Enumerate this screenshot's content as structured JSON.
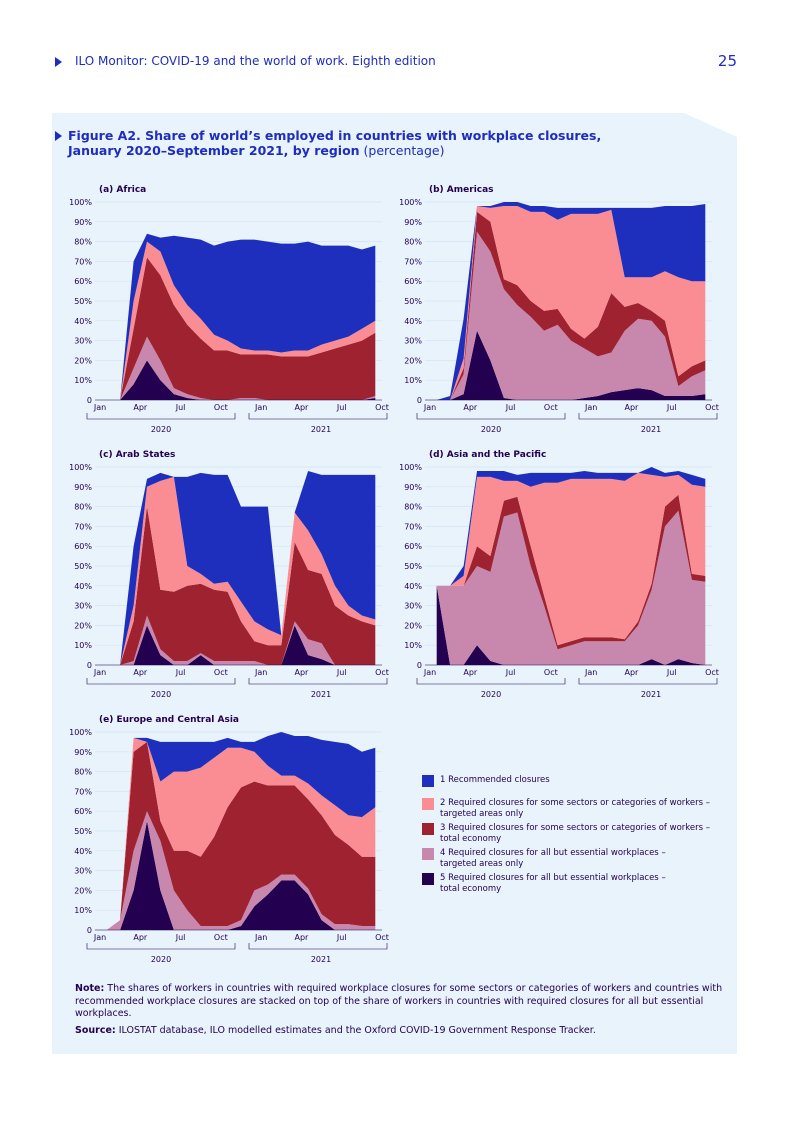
{
  "header": {
    "title": "ILO Monitor: COVID-19 and the world of work. Eighth edition",
    "page_number": "25"
  },
  "figure": {
    "title_line1": "Figure A2.  Share of world’s employed in countries with workplace closures,",
    "title_line2": "January 2020–September 2021, by region",
    "title_unit": " (percentage)"
  },
  "colors": {
    "c1": "#1f2fbd",
    "c2": "#f98d93",
    "c3": "#9e2230",
    "c4": "#c887ad",
    "c5": "#230050"
  },
  "axis": {
    "y_ticks": [
      "100%",
      "90%",
      "80%",
      "70%",
      "60%",
      "50%",
      "40%",
      "30%",
      "20%",
      "10%",
      "0"
    ],
    "x_ticks": [
      "Jan",
      "Apr",
      "Jul",
      "Oct",
      "Jan",
      "Apr",
      "Jul",
      "Oct"
    ],
    "years": [
      "2020",
      "2021"
    ]
  },
  "legend": [
    {
      "label": "1 Recommended closures"
    },
    {
      "label": "2 Required closures for some sectors or categories of workers –",
      "label2": "targeted areas only"
    },
    {
      "label": "3 Required closures for some sectors or categories of workers –",
      "label2": "total economy"
    },
    {
      "label": "4 Required closures for all but essential workplaces –",
      "label2": "targeted areas only"
    },
    {
      "label": "5 Required closures for all but essential workplaces –",
      "label2": "total economy"
    }
  ],
  "note": {
    "label": "Note:",
    "text": " The shares of workers in countries with required workplace closures for some sectors or categories of workers and countries with recommended workplace closures are stacked on top of the share of workers in countries with required closures for all but essential workplaces."
  },
  "source": {
    "label": "Source:",
    "text": " ILOSTAT database, ILO modelled estimates and the Oxford COVID-19 Government Response Tracker."
  },
  "chart_data": [
    {
      "type": "area",
      "stacked": true,
      "title": "(a) Africa",
      "x": [
        "2020-01",
        "2020-02",
        "2020-03",
        "2020-04",
        "2020-05",
        "2020-06",
        "2020-07",
        "2020-08",
        "2020-09",
        "2020-10",
        "2020-11",
        "2020-12",
        "2021-01",
        "2021-02",
        "2021-03",
        "2021-04",
        "2021-05",
        "2021-06",
        "2021-07",
        "2021-08",
        "2021-09"
      ],
      "ylim": [
        0,
        100
      ],
      "yunit": "%",
      "series": [
        {
          "name": "5",
          "values": [
            0,
            0,
            8,
            20,
            10,
            3,
            1,
            0,
            0,
            0,
            0,
            0,
            0,
            0,
            0,
            0,
            0,
            0,
            0,
            0,
            1
          ]
        },
        {
          "name": "4",
          "values": [
            0,
            0,
            8,
            12,
            10,
            3,
            2,
            1,
            0,
            0,
            1,
            1,
            0,
            0,
            0,
            0,
            0,
            0,
            0,
            0,
            1
          ]
        },
        {
          "name": "3",
          "values": [
            0,
            0,
            20,
            40,
            43,
            42,
            35,
            30,
            25,
            25,
            22,
            22,
            23,
            22,
            22,
            22,
            24,
            26,
            28,
            30,
            32
          ]
        },
        {
          "name": "2",
          "values": [
            0,
            0,
            14,
            8,
            12,
            10,
            10,
            10,
            8,
            5,
            3,
            2,
            2,
            2,
            3,
            3,
            4,
            4,
            4,
            6,
            6
          ]
        },
        {
          "name": "1",
          "values": [
            0,
            0,
            20,
            4,
            7,
            25,
            34,
            40,
            45,
            50,
            55,
            56,
            55,
            55,
            54,
            55,
            50,
            48,
            46,
            40,
            38
          ]
        }
      ]
    },
    {
      "type": "area",
      "stacked": true,
      "title": "(b) Americas",
      "x": [
        "2020-01",
        "2020-02",
        "2020-03",
        "2020-04",
        "2020-05",
        "2020-06",
        "2020-07",
        "2020-08",
        "2020-09",
        "2020-10",
        "2020-11",
        "2020-12",
        "2021-01",
        "2021-02",
        "2021-03",
        "2021-04",
        "2021-05",
        "2021-06",
        "2021-07",
        "2021-08",
        "2021-09"
      ],
      "ylim": [
        0,
        100
      ],
      "yunit": "%",
      "series": [
        {
          "name": "5",
          "values": [
            0,
            0,
            3,
            35,
            20,
            1,
            0,
            0,
            0,
            0,
            0,
            1,
            2,
            4,
            5,
            6,
            5,
            2,
            2,
            2,
            3
          ]
        },
        {
          "name": "4",
          "values": [
            0,
            0,
            10,
            50,
            55,
            55,
            48,
            42,
            35,
            38,
            30,
            25,
            20,
            20,
            30,
            35,
            35,
            30,
            5,
            10,
            12
          ]
        },
        {
          "name": "3",
          "values": [
            0,
            0,
            3,
            10,
            15,
            5,
            10,
            8,
            10,
            8,
            6,
            5,
            15,
            30,
            12,
            8,
            5,
            8,
            5,
            5,
            5
          ]
        },
        {
          "name": "2",
          "values": [
            0,
            0,
            5,
            3,
            7,
            37,
            40,
            45,
            50,
            45,
            58,
            63,
            57,
            42,
            15,
            13,
            17,
            25,
            50,
            43,
            40
          ]
        },
        {
          "name": "1",
          "values": [
            0,
            2,
            20,
            0,
            1,
            2,
            2,
            3,
            3,
            6,
            3,
            3,
            3,
            1,
            35,
            35,
            35,
            33,
            36,
            38,
            39
          ]
        }
      ]
    },
    {
      "type": "area",
      "stacked": true,
      "title": "(c) Arab States",
      "x": [
        "2020-01",
        "2020-02",
        "2020-03",
        "2020-04",
        "2020-05",
        "2020-06",
        "2020-07",
        "2020-08",
        "2020-09",
        "2020-10",
        "2020-11",
        "2020-12",
        "2021-01",
        "2021-02",
        "2021-03",
        "2021-04",
        "2021-05",
        "2021-06",
        "2021-07",
        "2021-08",
        "2021-09"
      ],
      "ylim": [
        0,
        100
      ],
      "yunit": "%",
      "series": [
        {
          "name": "5",
          "values": [
            0,
            0,
            0,
            20,
            5,
            0,
            0,
            5,
            0,
            0,
            0,
            0,
            0,
            0,
            20,
            5,
            3,
            0,
            0,
            0,
            0
          ]
        },
        {
          "name": "4",
          "values": [
            0,
            0,
            2,
            5,
            3,
            2,
            2,
            1,
            2,
            2,
            2,
            2,
            0,
            0,
            2,
            8,
            8,
            0,
            0,
            0,
            0
          ]
        },
        {
          "name": "3",
          "values": [
            0,
            0,
            20,
            55,
            30,
            35,
            38,
            35,
            36,
            35,
            20,
            10,
            10,
            10,
            40,
            35,
            35,
            30,
            25,
            22,
            20
          ]
        },
        {
          "name": "2",
          "values": [
            0,
            0,
            8,
            10,
            55,
            58,
            10,
            5,
            3,
            5,
            10,
            10,
            8,
            5,
            15,
            20,
            10,
            10,
            5,
            3,
            3
          ]
        },
        {
          "name": "1",
          "values": [
            0,
            0,
            30,
            4,
            4,
            0,
            45,
            51,
            55,
            54,
            48,
            58,
            62,
            0,
            0,
            30,
            40,
            56,
            66,
            71,
            73
          ]
        }
      ]
    },
    {
      "type": "area",
      "stacked": true,
      "title": "(d) Asia and the Pacific",
      "x": [
        "2020-01",
        "2020-02",
        "2020-03",
        "2020-04",
        "2020-05",
        "2020-06",
        "2020-07",
        "2020-08",
        "2020-09",
        "2020-10",
        "2020-11",
        "2020-12",
        "2021-01",
        "2021-02",
        "2021-03",
        "2021-04",
        "2021-05",
        "2021-06",
        "2021-07",
        "2021-08",
        "2021-09"
      ],
      "ylim": [
        0,
        100
      ],
      "yunit": "%",
      "series": [
        {
          "name": "5",
          "values": [
            40,
            0,
            0,
            10,
            2,
            0,
            0,
            0,
            0,
            0,
            0,
            0,
            0,
            0,
            0,
            0,
            3,
            0,
            3,
            1,
            0
          ]
        },
        {
          "name": "4",
          "values": [
            0,
            40,
            40,
            40,
            45,
            75,
            77,
            50,
            30,
            8,
            10,
            12,
            12,
            12,
            12,
            20,
            35,
            70,
            75,
            42,
            42
          ]
        },
        {
          "name": "3",
          "values": [
            0,
            0,
            0,
            10,
            8,
            8,
            8,
            10,
            5,
            2,
            2,
            2,
            2,
            2,
            1,
            2,
            3,
            10,
            8,
            3,
            3
          ]
        },
        {
          "name": "2",
          "values": [
            0,
            0,
            5,
            35,
            40,
            10,
            8,
            30,
            57,
            82,
            82,
            80,
            80,
            80,
            80,
            75,
            55,
            15,
            10,
            45,
            45
          ]
        },
        {
          "name": "1",
          "values": [
            0,
            0,
            5,
            3,
            3,
            5,
            3,
            7,
            5,
            5,
            3,
            4,
            3,
            3,
            4,
            0,
            4,
            2,
            2,
            5,
            4
          ]
        }
      ]
    },
    {
      "type": "area",
      "stacked": true,
      "title": "(e) Europe and Central Asia",
      "x": [
        "2020-01",
        "2020-02",
        "2020-03",
        "2020-04",
        "2020-05",
        "2020-06",
        "2020-07",
        "2020-08",
        "2020-09",
        "2020-10",
        "2020-11",
        "2020-12",
        "2021-01",
        "2021-02",
        "2021-03",
        "2021-04",
        "2021-05",
        "2021-06",
        "2021-07",
        "2021-08",
        "2021-09"
      ],
      "ylim": [
        0,
        100
      ],
      "yunit": "%",
      "series": [
        {
          "name": "5",
          "values": [
            0,
            0,
            20,
            55,
            20,
            0,
            0,
            0,
            0,
            0,
            2,
            12,
            18,
            25,
            25,
            18,
            5,
            0,
            0,
            0,
            0
          ]
        },
        {
          "name": "4",
          "values": [
            0,
            5,
            20,
            5,
            25,
            20,
            10,
            2,
            2,
            2,
            3,
            8,
            5,
            3,
            3,
            3,
            3,
            3,
            3,
            2,
            2
          ]
        },
        {
          "name": "3",
          "values": [
            0,
            0,
            50,
            35,
            10,
            20,
            30,
            35,
            45,
            60,
            67,
            55,
            50,
            45,
            45,
            45,
            50,
            45,
            40,
            35,
            35
          ]
        },
        {
          "name": "2",
          "values": [
            0,
            0,
            7,
            0,
            20,
            40,
            40,
            45,
            40,
            30,
            20,
            15,
            10,
            5,
            5,
            8,
            10,
            15,
            15,
            20,
            25
          ]
        },
        {
          "name": "1",
          "values": [
            0,
            0,
            0,
            2,
            20,
            15,
            15,
            13,
            8,
            5,
            3,
            5,
            15,
            22,
            20,
            24,
            28,
            32,
            36,
            33,
            30
          ]
        }
      ]
    }
  ]
}
